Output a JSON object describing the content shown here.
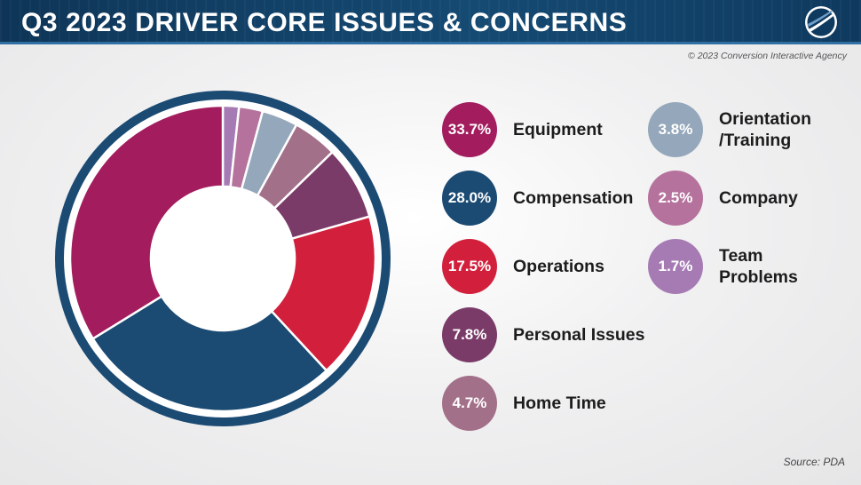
{
  "header": {
    "title": "Q3 2023 DRIVER CORE ISSUES & CONCERNS"
  },
  "copyright": "© 2023 Conversion Interactive Agency",
  "source": "Source: PDA",
  "chart_data": {
    "type": "pie",
    "title": "Q3 2023 DRIVER CORE ISSUES & CONCERNS",
    "categories": [
      "Equipment",
      "Compensation",
      "Operations",
      "Personal Issues",
      "Home Time",
      "Orientation\n/Training",
      "Company",
      "Team\nProblems"
    ],
    "values": [
      33.7,
      28.0,
      17.5,
      7.8,
      4.7,
      3.8,
      2.5,
      1.7
    ],
    "value_labels": [
      "33.7%",
      "28.0%",
      "17.5%",
      "7.8%",
      "4.7%",
      "3.8%",
      "2.5%",
      "1.7%"
    ],
    "colors": [
      "#a31c5e",
      "#1b4a73",
      "#d2203c",
      "#7a3b68",
      "#a3708a",
      "#95a8bb",
      "#b5729c",
      "#a67bb4"
    ],
    "ring_color": "#1b4a73",
    "legend": "right",
    "style": "donut"
  }
}
